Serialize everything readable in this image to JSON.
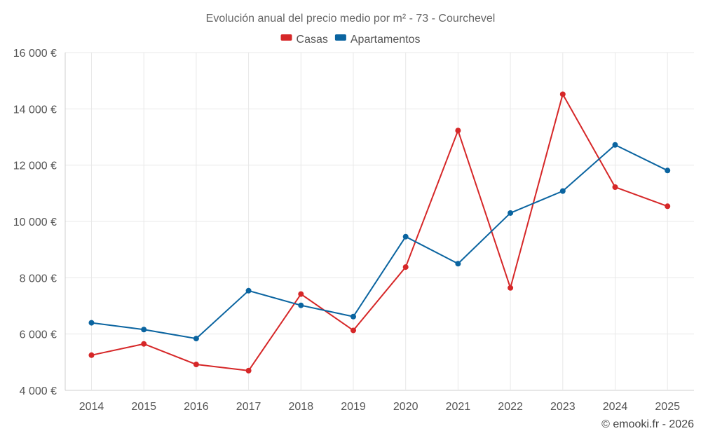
{
  "chart_data": {
    "type": "line",
    "title": "Evolución anual del precio medio por m² - 73 - Courchevel",
    "categories": [
      "2014",
      "2015",
      "2016",
      "2017",
      "2018",
      "2019",
      "2020",
      "2021",
      "2022",
      "2023",
      "2024",
      "2025"
    ],
    "series": [
      {
        "name": "Casas",
        "color": "#d62728",
        "values": [
          5250,
          5650,
          4920,
          4700,
          7420,
          6130,
          8380,
          13230,
          7640,
          14520,
          11220,
          10540
        ]
      },
      {
        "name": "Apartamentos",
        "color": "#0a64a0",
        "values": [
          6400,
          6160,
          5840,
          7540,
          7020,
          6620,
          9460,
          8500,
          10300,
          11080,
          12720,
          11810
        ]
      }
    ],
    "ylim": [
      4000,
      16000
    ],
    "yticks": [
      4000,
      6000,
      8000,
      10000,
      12000,
      14000,
      16000
    ],
    "ytick_labels": [
      "4 000 €",
      "6 000 €",
      "8 000 €",
      "10 000 €",
      "12 000 €",
      "14 000 €",
      "16 000 €"
    ],
    "xlabel": "",
    "ylabel": "",
    "legend_position": "top-center",
    "grid": true
  },
  "credit": "© emooki.fr - 2026"
}
